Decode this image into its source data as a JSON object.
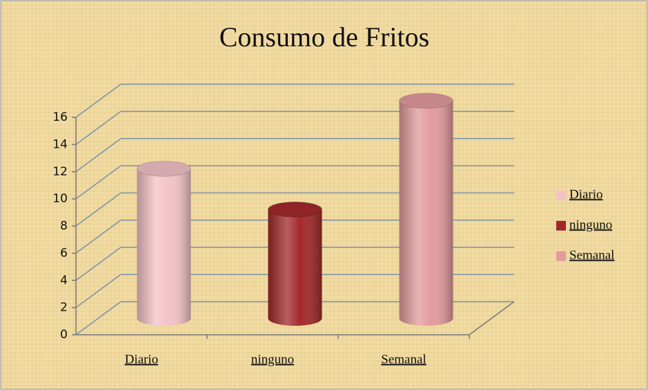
{
  "chart_data": {
    "type": "bar",
    "title": "Consumo de Fritos",
    "categories": [
      "Diario",
      "ninguno",
      "Semanal"
    ],
    "series": [
      {
        "name": "Diario",
        "color": "#f2c2c6",
        "values": [
          11,
          null,
          null
        ]
      },
      {
        "name": "ninguno",
        "color": "#a2292b",
        "values": [
          null,
          8,
          null
        ]
      },
      {
        "name": "Semanal",
        "color": "#e29a9e",
        "values": [
          null,
          null,
          16
        ]
      }
    ],
    "ylim": [
      0,
      16
    ],
    "yticks": [
      0,
      2,
      4,
      6,
      8,
      10,
      12,
      14,
      16
    ],
    "grid": true,
    "legend": "right"
  }
}
